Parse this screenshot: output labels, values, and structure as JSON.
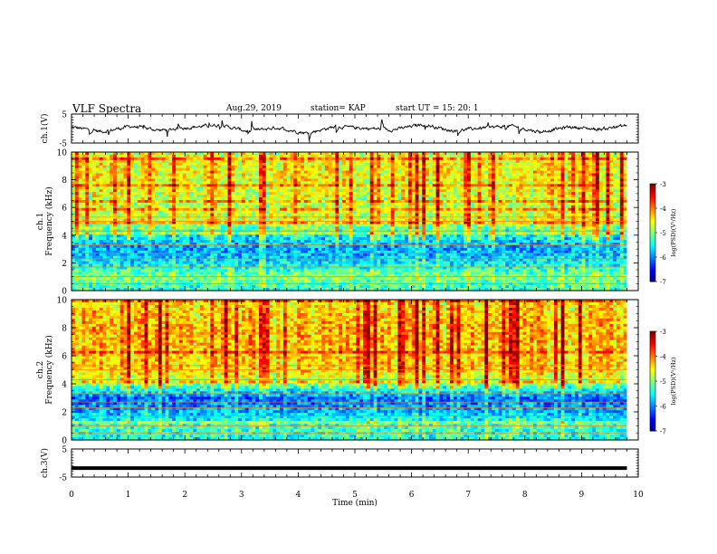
{
  "header": {
    "title": "VLF Spectra",
    "date": "Aug.29, 2019",
    "station": "station= KAP",
    "start": "start  UT =   15: 20: 1"
  },
  "chart_data": [
    {
      "type": "line",
      "ylabel": "ch.1(V)",
      "ylim": [
        -5,
        5
      ],
      "yticks": [
        "5",
        "-5"
      ],
      "xlim": [
        0,
        10
      ],
      "series": [
        {
          "values_desc": [
            0.5,
            -1.1,
            0.8,
            -0.6,
            0.4,
            1.2,
            -0.9,
            0.3,
            -1.6,
            0.7,
            0.1,
            -0.4,
            1.5,
            -0.8,
            0.2,
            0.9,
            -1.2,
            0.6,
            -0.3,
            1.1
          ]
        }
      ],
      "color": "#000000"
    },
    {
      "type": "heatmap",
      "ylabel": "ch.1\nFrequency (kHz)",
      "ylim": [
        0,
        10
      ],
      "yticks": [
        "0",
        "2",
        "4",
        "6",
        "8",
        "10"
      ],
      "xlim": [
        0,
        10
      ],
      "colorbar": {
        "label": "log(PSD)(V²/Hz)",
        "range": [
          -7,
          -3
        ],
        "ticks": [
          "-3",
          "-4",
          "-5",
          "-6",
          "-7"
        ]
      },
      "band_profile_log_psd": [
        {
          "f": 0.2,
          "v": -5.3
        },
        {
          "f": 1.0,
          "v": -5.0
        },
        {
          "f": 2.0,
          "v": -5.6
        },
        {
          "f": 3.0,
          "v": -5.9
        },
        {
          "f": 4.0,
          "v": -5.5
        },
        {
          "f": 5.0,
          "v": -4.6
        },
        {
          "f": 6.0,
          "v": -4.7
        },
        {
          "f": 7.0,
          "v": -4.6
        },
        {
          "f": 8.0,
          "v": -4.5
        },
        {
          "f": 9.0,
          "v": -4.5
        },
        {
          "f": 10.0,
          "v": -4.6
        }
      ]
    },
    {
      "type": "heatmap",
      "ylabel": "ch.2\nFrequency (kHz)",
      "ylim": [
        0,
        10
      ],
      "yticks": [
        "0",
        "2",
        "4",
        "6",
        "8",
        "10"
      ],
      "xlim": [
        0,
        10
      ],
      "colorbar": {
        "label": "log(PSD)(V²/Hz)",
        "range": [
          -7,
          -3
        ],
        "ticks": [
          "-3",
          "-4",
          "-5",
          "-6",
          "-7"
        ]
      },
      "band_profile_log_psd": [
        {
          "f": 0.2,
          "v": -5.4
        },
        {
          "f": 1.0,
          "v": -5.3
        },
        {
          "f": 2.0,
          "v": -5.8
        },
        {
          "f": 3.0,
          "v": -6.1
        },
        {
          "f": 4.0,
          "v": -4.9
        },
        {
          "f": 5.0,
          "v": -4.3
        },
        {
          "f": 6.0,
          "v": -4.3
        },
        {
          "f": 7.0,
          "v": -4.2
        },
        {
          "f": 8.0,
          "v": -4.2
        },
        {
          "f": 9.0,
          "v": -4.3
        },
        {
          "f": 10.0,
          "v": -4.4
        }
      ]
    },
    {
      "type": "line",
      "ylabel": "ch.3(V)",
      "ylim": [
        -5,
        5
      ],
      "yticks": [
        "5",
        "-5"
      ],
      "xlim": [
        0,
        10
      ],
      "series": [
        {
          "constant": -1.8
        }
      ],
      "color": "#000000"
    }
  ],
  "xaxis": {
    "label": "Time  (min)",
    "ticks": [
      "0",
      "1",
      "2",
      "3",
      "4",
      "5",
      "6",
      "7",
      "8",
      "9",
      "10"
    ],
    "max": 9.8
  }
}
